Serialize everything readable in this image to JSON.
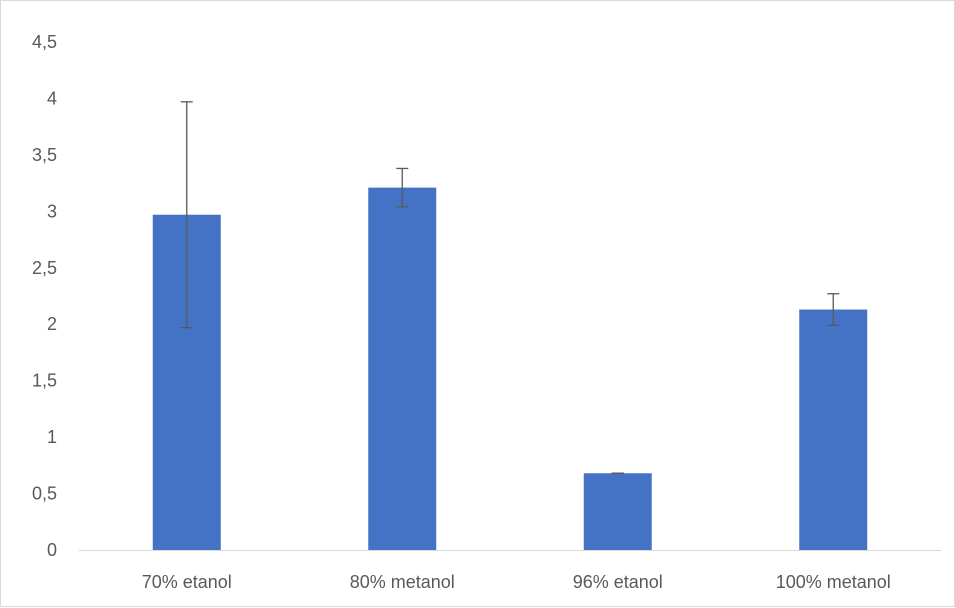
{
  "chart_data": {
    "type": "bar",
    "categories": [
      "70% etanol",
      "80% metanol",
      "96% etanol",
      "100% metanol"
    ],
    "values": [
      2.97,
      3.21,
      0.68,
      2.13
    ],
    "error": [
      1.0,
      0.17,
      0.0,
      0.14
    ],
    "y_ticks": [
      "0",
      "0,5",
      "1",
      "1,5",
      "2",
      "2,5",
      "3",
      "3,5",
      "4",
      "4,5"
    ],
    "ylim": [
      0,
      4.5
    ],
    "grid": false,
    "legend": "none",
    "bar_color": "#4472C4",
    "error_bar_color": "#595959",
    "axis_color": "#d9d9d9"
  }
}
